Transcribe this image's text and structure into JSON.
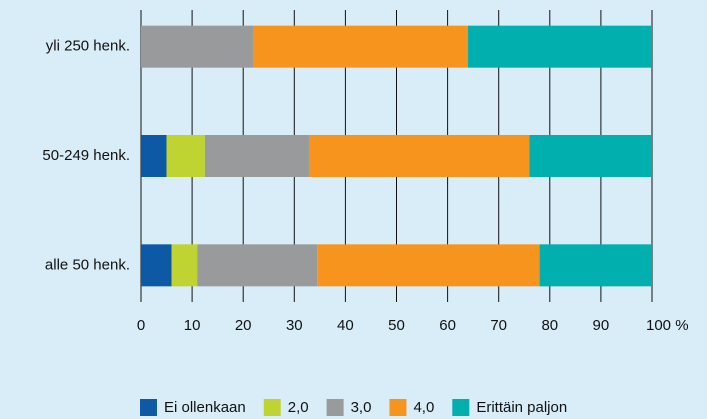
{
  "chart_data": {
    "type": "stacked-barh",
    "categories": [
      "yli 250 henk.",
      "50-249 henk.",
      "alle 50 henk."
    ],
    "series": [
      {
        "name": "Ei ollenkaan",
        "color": "#0d59a5",
        "values": [
          0,
          5,
          6
        ]
      },
      {
        "name": "2,0",
        "color": "#bfd430",
        "values": [
          0,
          7.5,
          5
        ]
      },
      {
        "name": "3,0",
        "color": "#999a9c",
        "values": [
          22,
          20.5,
          23.5
        ]
      },
      {
        "name": "4,0",
        "color": "#f7941e",
        "values": [
          42,
          43,
          43.5
        ]
      },
      {
        "name": "Erittäin paljon",
        "color": "#00afae",
        "values": [
          36,
          24,
          22
        ]
      }
    ],
    "xlim": [
      0,
      100
    ],
    "xticks": [
      0,
      10,
      20,
      30,
      40,
      50,
      60,
      70,
      80,
      90,
      {
        "value": 100,
        "label": "100 %"
      }
    ],
    "grid": true,
    "legend": "bottom"
  }
}
